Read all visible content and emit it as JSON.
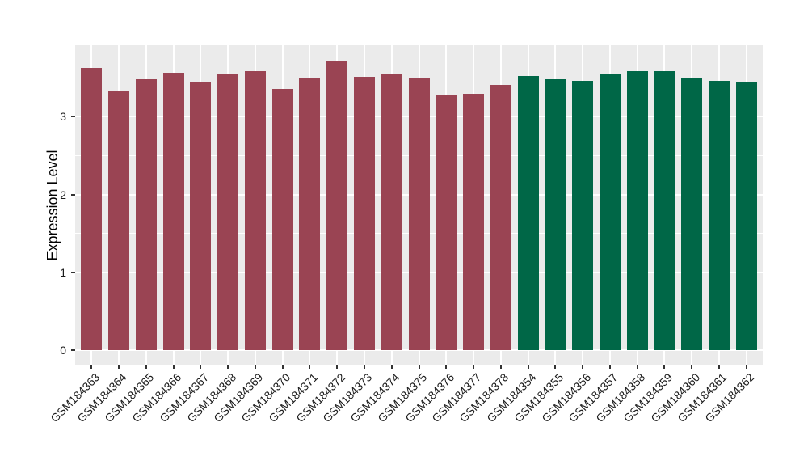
{
  "chart_data": {
    "type": "bar",
    "ylabel": "Expression Level",
    "ylim": [
      0,
      3.92
    ],
    "yticks": [
      "0",
      "1",
      "2",
      "3"
    ],
    "ytick_values": [
      0,
      1,
      2,
      3
    ],
    "minor_gridline_values": [
      0.5,
      1.5,
      2.5,
      3.5
    ],
    "grid": "on",
    "legend": "none",
    "style": {
      "panel_background": "#EBEBEB",
      "gridline_color": "#FFFFFF",
      "axis_text_color": "#1A1A1A",
      "tick_color": "#333333"
    },
    "series": [
      {
        "name": "maroon-group",
        "color": "#9A4453",
        "categories": [
          "GSM184363",
          "GSM184364",
          "GSM184365",
          "GSM184366",
          "GSM184367",
          "GSM184368",
          "GSM184369",
          "GSM184370",
          "GSM184371",
          "GSM184372",
          "GSM184373",
          "GSM184374",
          "GSM184375",
          "GSM184376",
          "GSM184377",
          "GSM184378"
        ],
        "values": [
          3.63,
          3.34,
          3.48,
          3.57,
          3.44,
          3.56,
          3.59,
          3.36,
          3.5,
          3.72,
          3.51,
          3.56,
          3.5,
          3.27,
          3.3,
          3.41
        ]
      },
      {
        "name": "green-group",
        "color": "#006747",
        "categories": [
          "GSM184354",
          "GSM184355",
          "GSM184356",
          "GSM184357",
          "GSM184358",
          "GSM184359",
          "GSM184360",
          "GSM184361",
          "GSM184362"
        ],
        "values": [
          3.52,
          3.48,
          3.46,
          3.54,
          3.59,
          3.59,
          3.49,
          3.46,
          3.45
        ]
      }
    ]
  }
}
